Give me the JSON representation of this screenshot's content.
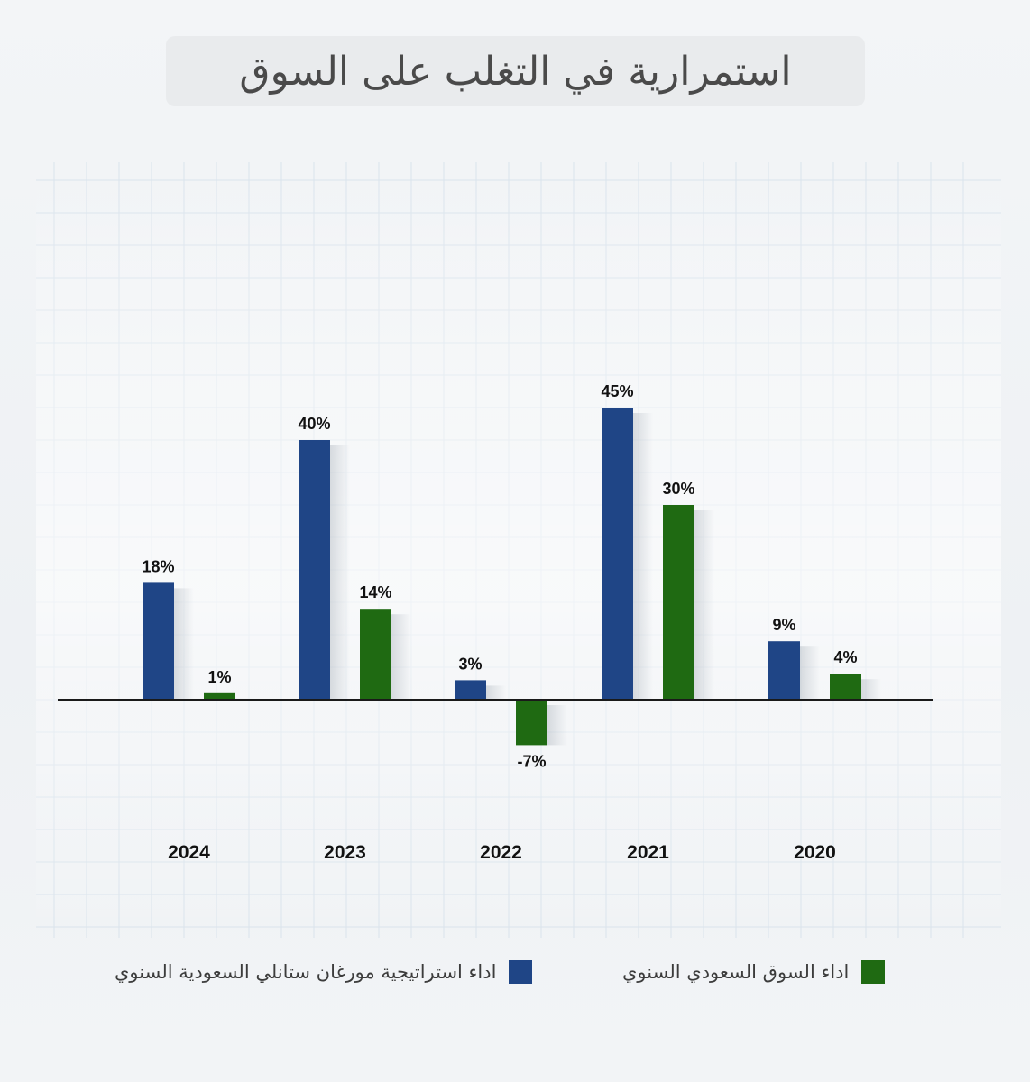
{
  "title": "استمرارية في التغلب على السوق",
  "legend": {
    "strategy_label": "اداء استراتيجية مورغان ستانلي السعودية السنوي",
    "market_label": "اداء السوق السعودي السنوي"
  },
  "colors": {
    "strategy": "#1f4586",
    "market": "#1f6a12",
    "baseline": "#1a1a1a",
    "grid": "#d9e3ec"
  },
  "chart_data": {
    "type": "bar",
    "categories": [
      "2024",
      "2023",
      "2022",
      "2021",
      "2020"
    ],
    "series": [
      {
        "name": "اداء استراتيجية مورغان ستانلي السعودية السنوي",
        "values": [
          18,
          40,
          3,
          45,
          9
        ],
        "labels": [
          "18%",
          "40%",
          "3%",
          "45%",
          "9%"
        ]
      },
      {
        "name": "اداء السوق السعودي السنوي",
        "values": [
          1,
          14,
          -7,
          30,
          4
        ],
        "labels": [
          "1%",
          "14%",
          "-7%",
          "30%",
          "4%"
        ]
      }
    ],
    "unit": "%",
    "xlabel": "",
    "ylabel": "",
    "ylim": [
      -10,
      50
    ],
    "grid": true,
    "legend_position": "bottom"
  }
}
